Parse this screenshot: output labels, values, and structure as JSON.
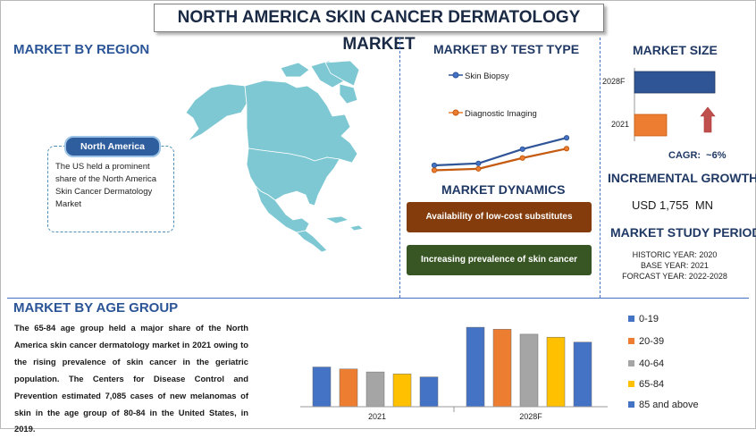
{
  "title": "NORTH AMERICA SKIN CANCER DERMATOLOGY MARKET",
  "region": {
    "heading": "MARKET BY REGION",
    "badge": "North America",
    "text": "The US held a prominent share of the North America Skin Cancer Dermatology Market"
  },
  "test_type": {
    "heading": "MARKET BY TEST TYPE",
    "legend": [
      "Skin Biopsy",
      "Diagnostic Imaging"
    ],
    "colors": [
      "#4472c4",
      "#ed7d31"
    ]
  },
  "dynamics": {
    "heading": "MARKET DYNAMICS",
    "items": [
      {
        "label": "Availability of low-cost substitutes",
        "color": "#843c0c"
      },
      {
        "label": "Increasing prevalence of skin cancer",
        "color": "#375623"
      }
    ]
  },
  "market_size": {
    "heading": "MARKET SIZE",
    "labels": [
      "2028F",
      "2021"
    ],
    "cagr": "CAGR:  ~6%"
  },
  "growth": {
    "heading": "INCREMENTAL GROWTH",
    "value": "USD 1,755  MN"
  },
  "study_period": {
    "heading": "MARKET STUDY PERIOD",
    "lines": [
      "HISTORIC YEAR: 2020",
      "BASE YEAR: 2021",
      "FORCAST YEAR: 2022-2028"
    ]
  },
  "age_group": {
    "heading": "MARKET BY AGE GROUP",
    "text": "The 65-84 age group held a major share of the North America skin cancer dermatology market in 2021 owing to the rising prevalence of skin cancer in the geriatric population. The Centers for Disease Control and Prevention estimated 7,085 cases of new melanomas of skin in the age group of 80-84 in the United States, in 2019."
  },
  "chart_data": [
    {
      "type": "bar",
      "categories": [
        "2021",
        "2028F"
      ],
      "series": [
        {
          "name": "0-19",
          "values": [
            40,
            80
          ],
          "color": "#4472c4"
        },
        {
          "name": "20-39",
          "values": [
            38,
            78
          ],
          "color": "#ed7d31"
        },
        {
          "name": "40-64",
          "values": [
            35,
            73
          ],
          "color": "#a5a5a5"
        },
        {
          "name": "65-84",
          "values": [
            33,
            70
          ],
          "color": "#ffc000"
        },
        {
          "name": "85 and above",
          "values": [
            30,
            65
          ],
          "color": "#4472c4"
        }
      ],
      "legend_position": "right",
      "ylim": [
        0,
        90
      ]
    },
    {
      "type": "line",
      "x": [
        1,
        2,
        3,
        4
      ],
      "series": [
        {
          "name": "Skin Biopsy",
          "values": [
            2.0,
            2.4,
            5.3,
            7.6
          ]
        },
        {
          "name": "Diagnostic Imaging",
          "values": [
            1.0,
            1.3,
            3.5,
            5.4
          ]
        }
      ],
      "ylim": [
        0,
        10
      ]
    },
    {
      "type": "bar",
      "orientation": "horizontal",
      "categories": [
        "2028F",
        "2021"
      ],
      "values": [
        100,
        40
      ]
    }
  ]
}
